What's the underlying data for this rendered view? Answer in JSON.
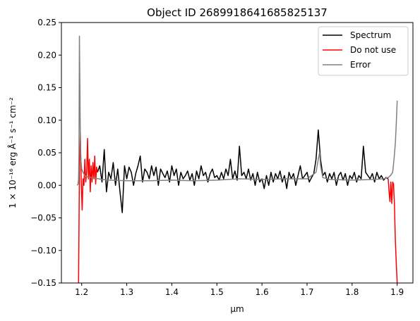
{
  "chart_data": {
    "type": "line",
    "title": "Object ID 2689918641685825137",
    "xlabel": "µm",
    "ylabel": "1 × 10⁻¹⁶ erg Å⁻¹ s⁻¹ cm⁻²",
    "xlim": [
      1.155,
      1.935
    ],
    "ylim": [
      -0.15,
      0.25
    ],
    "xticks": [
      1.2,
      1.3,
      1.4,
      1.5,
      1.6,
      1.7,
      1.8,
      1.9
    ],
    "xtick_labels": [
      "1.2",
      "1.3",
      "1.4",
      "1.5",
      "1.6",
      "1.7",
      "1.8",
      "1.9"
    ],
    "yticks": [
      -0.15,
      -0.1,
      -0.05,
      0.0,
      0.05,
      0.1,
      0.15,
      0.2,
      0.25
    ],
    "ytick_labels": [
      "−0.15",
      "−0.10",
      "−0.05",
      "0.00",
      "0.05",
      "0.10",
      "0.15",
      "0.20",
      "0.25"
    ],
    "grid": false,
    "legend_position": "upper right",
    "series": [
      {
        "name": "Spectrum",
        "color": "#000000",
        "x": [
          1.235,
          1.24,
          1.245,
          1.25,
          1.255,
          1.26,
          1.265,
          1.27,
          1.275,
          1.28,
          1.285,
          1.29,
          1.295,
          1.3,
          1.305,
          1.31,
          1.315,
          1.32,
          1.325,
          1.33,
          1.335,
          1.34,
          1.345,
          1.35,
          1.355,
          1.36,
          1.365,
          1.37,
          1.375,
          1.38,
          1.385,
          1.39,
          1.395,
          1.4,
          1.405,
          1.41,
          1.415,
          1.42,
          1.425,
          1.43,
          1.435,
          1.44,
          1.445,
          1.45,
          1.455,
          1.46,
          1.465,
          1.47,
          1.475,
          1.48,
          1.485,
          1.49,
          1.495,
          1.5,
          1.505,
          1.51,
          1.515,
          1.52,
          1.525,
          1.53,
          1.535,
          1.54,
          1.545,
          1.55,
          1.555,
          1.56,
          1.565,
          1.57,
          1.575,
          1.58,
          1.585,
          1.59,
          1.595,
          1.6,
          1.605,
          1.61,
          1.615,
          1.62,
          1.625,
          1.63,
          1.635,
          1.64,
          1.645,
          1.65,
          1.655,
          1.66,
          1.665,
          1.67,
          1.675,
          1.68,
          1.685,
          1.69,
          1.695,
          1.7,
          1.705,
          1.71,
          1.715,
          1.72,
          1.725,
          1.73,
          1.735,
          1.74,
          1.745,
          1.75,
          1.755,
          1.76,
          1.765,
          1.77,
          1.775,
          1.78,
          1.785,
          1.79,
          1.795,
          1.8,
          1.805,
          1.81,
          1.815,
          1.82,
          1.825,
          1.83,
          1.835,
          1.84,
          1.845,
          1.85,
          1.855,
          1.86,
          1.865,
          1.87,
          1.875,
          1.88
        ],
        "y": [
          0.02,
          0.03,
          0.005,
          0.055,
          -0.01,
          0.02,
          0.01,
          0.035,
          0.0,
          0.025,
          -0.01,
          -0.042,
          0.03,
          0.01,
          0.028,
          0.02,
          0.0,
          0.018,
          0.03,
          0.045,
          0.005,
          0.025,
          0.02,
          0.01,
          0.03,
          0.015,
          0.028,
          0.0,
          0.025,
          0.018,
          0.012,
          0.022,
          0.005,
          0.03,
          0.015,
          0.025,
          0.0,
          0.02,
          0.01,
          0.015,
          0.022,
          0.008,
          0.018,
          0.0,
          0.022,
          0.01,
          0.03,
          0.015,
          0.02,
          0.005,
          0.018,
          0.025,
          0.012,
          0.015,
          0.008,
          0.02,
          0.01,
          0.025,
          0.015,
          0.04,
          0.01,
          0.022,
          0.008,
          0.06,
          0.015,
          0.02,
          0.01,
          0.025,
          0.008,
          0.018,
          0.0,
          0.02,
          0.005,
          0.01,
          -0.005,
          0.015,
          0.0,
          0.02,
          0.005,
          0.018,
          0.01,
          0.022,
          0.005,
          0.015,
          -0.005,
          0.02,
          0.01,
          0.018,
          0.0,
          0.015,
          0.03,
          0.01,
          0.015,
          0.02,
          0.005,
          0.012,
          0.018,
          0.04,
          0.085,
          0.04,
          0.015,
          0.02,
          0.005,
          0.018,
          0.01,
          0.02,
          0.0,
          0.015,
          0.02,
          0.008,
          0.018,
          0.0,
          0.015,
          0.01,
          0.02,
          0.005,
          0.015,
          0.01,
          0.06,
          0.02,
          0.015,
          0.01,
          0.018,
          0.005,
          0.02,
          0.01,
          0.015,
          0.008,
          0.012,
          0.01
        ]
      },
      {
        "name": "Do not use",
        "color": "#ff0000",
        "segments": [
          {
            "x": [
              1.193,
              1.195,
              1.197,
              1.199,
              1.201,
              1.203,
              1.205,
              1.207,
              1.209,
              1.211,
              1.213,
              1.215,
              1.217,
              1.219,
              1.221,
              1.223,
              1.225,
              1.227,
              1.229,
              1.231,
              1.233,
              1.235
            ],
            "y": [
              -0.15,
              0.02,
              0.082,
              0.005,
              -0.038,
              0.01,
              0.0,
              0.04,
              0.005,
              0.02,
              0.072,
              0.01,
              0.04,
              -0.01,
              0.03,
              0.005,
              0.035,
              0.01,
              0.045,
              0.002,
              0.028,
              0.02
            ]
          },
          {
            "x": [
              1.88,
              1.882,
              1.884,
              1.886,
              1.888,
              1.89,
              1.892,
              1.894,
              1.896,
              1.898,
              1.9
            ],
            "y": [
              0.01,
              -0.01,
              -0.025,
              0.005,
              -0.028,
              0.005,
              0.002,
              -0.03,
              -0.085,
              -0.12,
              -0.15
            ]
          }
        ]
      },
      {
        "name": "Error",
        "color": "#808080",
        "x": [
          1.19,
          1.192,
          1.193,
          1.194,
          1.195,
          1.196,
          1.197,
          1.198,
          1.2,
          1.203,
          1.207,
          1.212,
          1.22,
          1.23,
          1.245,
          1.26,
          1.3,
          1.35,
          1.4,
          1.45,
          1.5,
          1.55,
          1.6,
          1.65,
          1.7,
          1.72,
          1.725,
          1.728,
          1.73,
          1.735,
          1.75,
          1.8,
          1.85,
          1.87,
          1.88,
          1.885,
          1.89,
          1.893,
          1.896,
          1.898,
          1.9
        ],
        "y": [
          0.0,
          0.002,
          0.01,
          0.05,
          0.229,
          0.15,
          0.07,
          0.04,
          0.025,
          0.02,
          0.015,
          0.013,
          0.012,
          0.011,
          0.009,
          0.008,
          0.007,
          0.007,
          0.008,
          0.007,
          0.008,
          0.01,
          0.009,
          0.01,
          0.01,
          0.02,
          0.04,
          0.05,
          0.03,
          0.012,
          0.009,
          0.008,
          0.009,
          0.01,
          0.012,
          0.015,
          0.02,
          0.04,
          0.065,
          0.095,
          0.13
        ]
      }
    ]
  }
}
